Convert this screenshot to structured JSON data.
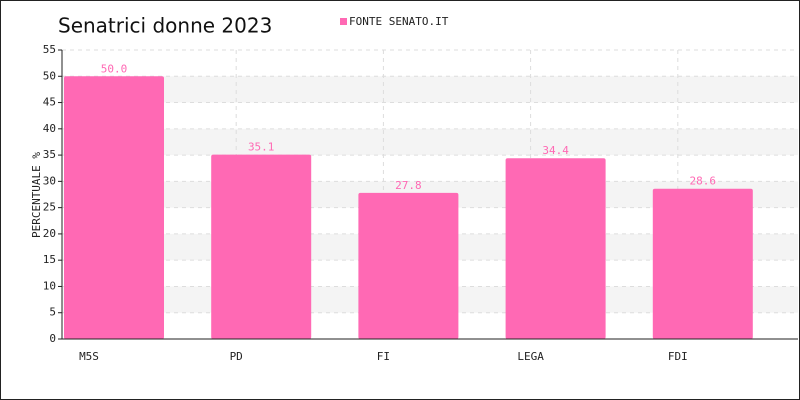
{
  "chart_data": {
    "type": "bar",
    "title": "Senatrici donne 2023",
    "y_label": "PERCENTUALE %",
    "categories": [
      "M5S",
      "PD",
      "FI",
      "LEGA",
      "FDI"
    ],
    "series": [
      {
        "name": "FONTE SENATO.IT",
        "color": "#ff69b4",
        "values": [
          50.0,
          35.1,
          27.8,
          34.4,
          28.6
        ],
        "value_labels": [
          "50.0",
          "35.1",
          "27.8",
          "34.4",
          "28.6"
        ]
      }
    ],
    "ylim": [
      0,
      55
    ],
    "yticks": [
      0,
      5,
      10,
      15,
      20,
      25,
      30,
      35,
      40,
      45,
      50,
      55
    ],
    "grid": true
  }
}
